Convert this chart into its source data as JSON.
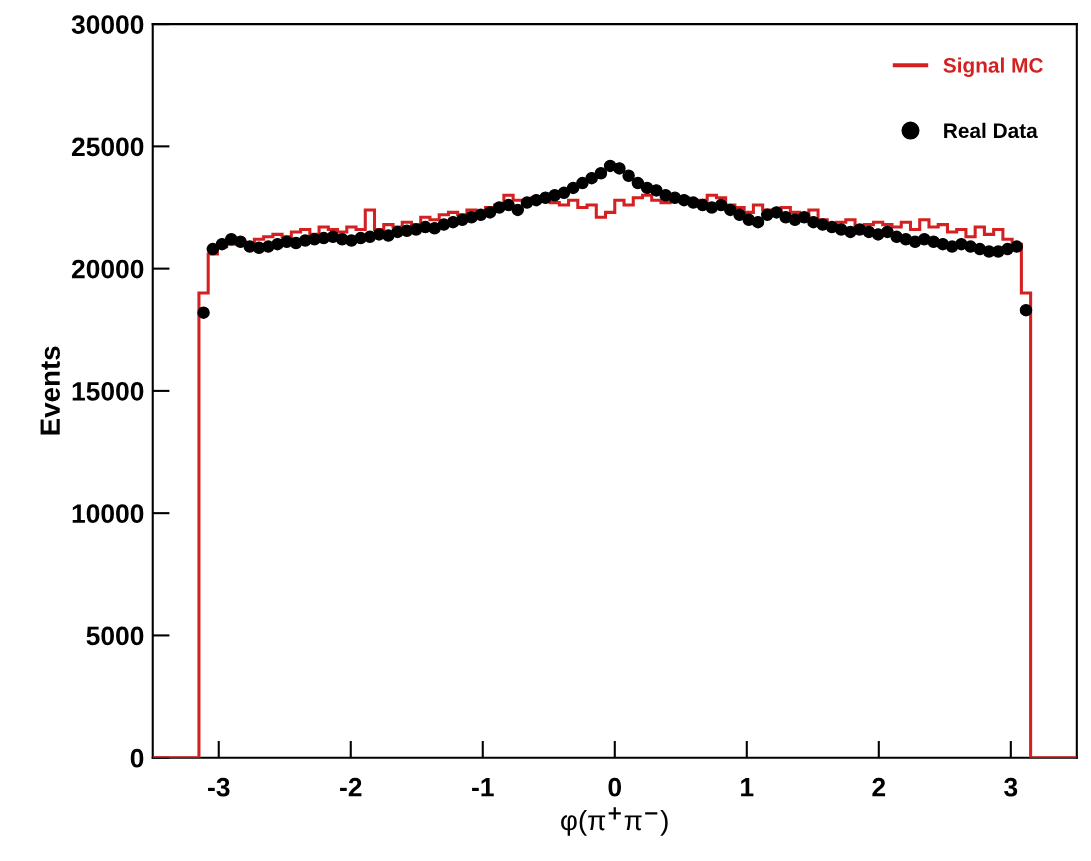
{
  "chart_data": {
    "type": "histogram",
    "xlabel": "φ(π$^{+}$π$^{−}$)",
    "ylabel": "Events",
    "xlim": [
      -3.5,
      3.5
    ],
    "ylim": [
      0,
      30000
    ],
    "xticks": [
      -3,
      -2,
      -1,
      0,
      1,
      2,
      3
    ],
    "yticks": [
      0,
      5000,
      10000,
      15000,
      20000,
      25000,
      30000
    ],
    "legend": "top right",
    "grid": false,
    "marker": "circle",
    "series": [
      {
        "type": "histogram",
        "name": "Signal MC",
        "color": "#d42020",
        "bins": [
          -3.5,
          -3.43,
          -3.36,
          -3.29,
          -3.22,
          -3.15,
          -3.08,
          -3.01,
          -2.94,
          -2.87,
          -2.8,
          -2.73,
          -2.66,
          -2.59,
          -2.52,
          -2.45,
          -2.38,
          -2.31,
          -2.24,
          -2.17,
          -2.1,
          -2.03,
          -1.96,
          -1.89,
          -1.82,
          -1.75,
          -1.68,
          -1.61,
          -1.54,
          -1.47,
          -1.4,
          -1.33,
          -1.26,
          -1.19,
          -1.12,
          -1.05,
          -0.98,
          -0.91,
          -0.84,
          -0.77,
          -0.7,
          -0.63,
          -0.56,
          -0.49,
          -0.42,
          -0.35,
          -0.28,
          -0.21,
          -0.14,
          -0.07,
          0,
          0.07,
          0.14,
          0.21,
          0.28,
          0.35,
          0.42,
          0.49,
          0.56,
          0.63,
          0.7,
          0.77,
          0.84,
          0.91,
          0.98,
          1.05,
          1.12,
          1.19,
          1.26,
          1.33,
          1.4,
          1.47,
          1.54,
          1.61,
          1.68,
          1.75,
          1.82,
          1.89,
          1.96,
          2.03,
          2.1,
          2.17,
          2.24,
          2.31,
          2.38,
          2.45,
          2.52,
          2.59,
          2.66,
          2.73,
          2.8,
          2.87,
          2.94,
          3.01,
          3.08,
          3.15,
          3.22,
          3.29,
          3.36,
          3.43,
          3.5
        ],
        "values": [
          0,
          0,
          0,
          0,
          0,
          19000,
          20600,
          20900,
          21000,
          21100,
          21000,
          21200,
          21300,
          21400,
          21300,
          21500,
          21600,
          21400,
          21700,
          21600,
          21500,
          21700,
          21600,
          22400,
          21600,
          21800,
          21700,
          21900,
          21800,
          22100,
          22000,
          22200,
          22300,
          22200,
          22400,
          22300,
          22500,
          22600,
          23000,
          22800,
          22700,
          22900,
          22800,
          22700,
          22600,
          22800,
          22500,
          22600,
          22100,
          22300,
          22800,
          22600,
          22900,
          23000,
          22800,
          22700,
          22800,
          22900,
          22700,
          22800,
          23000,
          22900,
          22600,
          22500,
          22300,
          22600,
          22400,
          22200,
          22500,
          22300,
          22100,
          22400,
          22000,
          21800,
          21900,
          22000,
          21700,
          21800,
          21900,
          21800,
          21700,
          21900,
          21600,
          22000,
          21700,
          21800,
          21500,
          21600,
          21300,
          21700,
          21400,
          21600,
          21200,
          21000,
          19000,
          0,
          0,
          0,
          0,
          0
        ]
      },
      {
        "type": "scatter",
        "name": "Real Data",
        "color": "#000000",
        "x": [
          -3.115,
          -3.045,
          -2.975,
          -2.905,
          -2.835,
          -2.765,
          -2.695,
          -2.625,
          -2.555,
          -2.485,
          -2.415,
          -2.345,
          -2.275,
          -2.205,
          -2.135,
          -2.065,
          -1.995,
          -1.925,
          -1.855,
          -1.785,
          -1.715,
          -1.645,
          -1.575,
          -1.505,
          -1.435,
          -1.365,
          -1.295,
          -1.225,
          -1.155,
          -1.085,
          -1.015,
          -0.945,
          -0.875,
          -0.805,
          -0.735,
          -0.665,
          -0.595,
          -0.525,
          -0.455,
          -0.385,
          -0.315,
          -0.245,
          -0.175,
          -0.105,
          -0.035,
          0.035,
          0.105,
          0.175,
          0.245,
          0.315,
          0.385,
          0.455,
          0.525,
          0.595,
          0.665,
          0.735,
          0.805,
          0.875,
          0.945,
          1.015,
          1.085,
          1.155,
          1.225,
          1.295,
          1.365,
          1.435,
          1.505,
          1.575,
          1.645,
          1.715,
          1.785,
          1.855,
          1.925,
          1.995,
          2.065,
          2.135,
          2.205,
          2.275,
          2.345,
          2.415,
          2.485,
          2.555,
          2.625,
          2.695,
          2.765,
          2.835,
          2.905,
          2.975,
          3.045,
          3.115
        ],
        "values": [
          18200,
          20800,
          21000,
          21200,
          21100,
          20900,
          20850,
          20900,
          21000,
          21100,
          21050,
          21150,
          21200,
          21250,
          21300,
          21200,
          21150,
          21250,
          21300,
          21400,
          21350,
          21500,
          21550,
          21600,
          21700,
          21650,
          21800,
          21900,
          22000,
          22100,
          22200,
          22300,
          22500,
          22600,
          22400,
          22700,
          22800,
          22900,
          23000,
          23100,
          23300,
          23500,
          23700,
          23900,
          24200,
          24100,
          23800,
          23500,
          23300,
          23200,
          23000,
          22900,
          22800,
          22700,
          22600,
          22500,
          22600,
          22400,
          22200,
          22000,
          21900,
          22200,
          22300,
          22100,
          22000,
          22100,
          21900,
          21800,
          21700,
          21600,
          21500,
          21600,
          21500,
          21400,
          21500,
          21300,
          21200,
          21100,
          21200,
          21100,
          21000,
          20900,
          21000,
          20900,
          20800,
          20700,
          20700,
          20800,
          20900,
          18300
        ]
      }
    ]
  }
}
